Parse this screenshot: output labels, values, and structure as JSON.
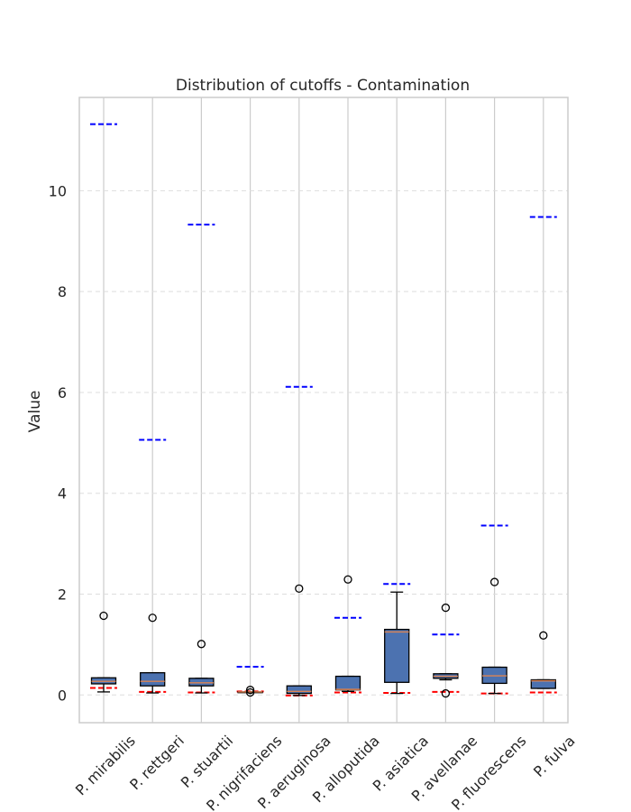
{
  "chart_data": {
    "type": "box",
    "title": "Distribution of cutoffs - Contamination",
    "xlabel": "",
    "ylabel": "Value",
    "ylim": [
      -0.55,
      11.85
    ],
    "yticks": [
      0,
      2,
      4,
      6,
      8,
      10
    ],
    "grid": true,
    "categories": [
      "P. mirabilis",
      "P. rettgeri",
      "P. stuartii",
      "P. nigrifaciens",
      "P. aeruginosa",
      "P. alloputida",
      "P. asiatica",
      "P. avellanae",
      "P. fluorescens",
      "P. fulva"
    ],
    "boxes": [
      {
        "whisker_low": 0.06,
        "q1": 0.22,
        "median": 0.27,
        "q3": 0.34,
        "whisker_high": 0.34,
        "outliers": [
          1.57
        ]
      },
      {
        "whisker_low": 0.04,
        "q1": 0.18,
        "median": 0.27,
        "q3": 0.44,
        "whisker_high": 0.44,
        "outliers": [
          1.53
        ]
      },
      {
        "whisker_low": 0.04,
        "q1": 0.18,
        "median": 0.24,
        "q3": 0.33,
        "whisker_high": 0.33,
        "outliers": [
          1.01
        ]
      },
      {
        "whisker_low": 0.06,
        "q1": 0.06,
        "median": 0.06,
        "q3": 0.06,
        "whisker_high": 0.06,
        "outliers": [
          0.05,
          0.1
        ]
      },
      {
        "whisker_low": -0.01,
        "q1": 0.03,
        "median": 0.07,
        "q3": 0.18,
        "whisker_high": 0.18,
        "outliers": [
          2.11
        ]
      },
      {
        "whisker_low": 0.07,
        "q1": 0.1,
        "median": 0.11,
        "q3": 0.37,
        "whisker_high": 0.37,
        "outliers": [
          2.29
        ]
      },
      {
        "whisker_low": 0.03,
        "q1": 0.25,
        "median": 1.25,
        "q3": 1.3,
        "whisker_high": 2.04,
        "outliers": []
      },
      {
        "whisker_low": 0.3,
        "q1": 0.33,
        "median": 0.37,
        "q3": 0.42,
        "whisker_high": 0.42,
        "outliers": [
          0.03,
          1.73
        ]
      },
      {
        "whisker_low": 0.03,
        "q1": 0.23,
        "median": 0.38,
        "q3": 0.55,
        "whisker_high": 0.55,
        "outliers": [
          2.24
        ]
      },
      {
        "whisker_low": 0.13,
        "q1": 0.13,
        "median": 0.28,
        "q3": 0.3,
        "whisker_high": 0.3,
        "outliers": [
          1.18
        ]
      }
    ],
    "upper_cutoffs": [
      11.32,
      5.06,
      9.33,
      0.56,
      6.11,
      1.53,
      2.2,
      1.2,
      3.36,
      9.48
    ],
    "lower_cutoffs": [
      0.14,
      0.06,
      0.05,
      0.07,
      -0.01,
      0.05,
      0.04,
      0.06,
      0.03,
      0.05
    ],
    "colors": {
      "box_fill": "#4c72b0",
      "box_edge": "#000000",
      "median": "#dd8452",
      "upper_cutoff": "#0000ff",
      "lower_cutoff": "#ff0000",
      "grid": "#dddddd",
      "frame": "#cccccc"
    }
  }
}
